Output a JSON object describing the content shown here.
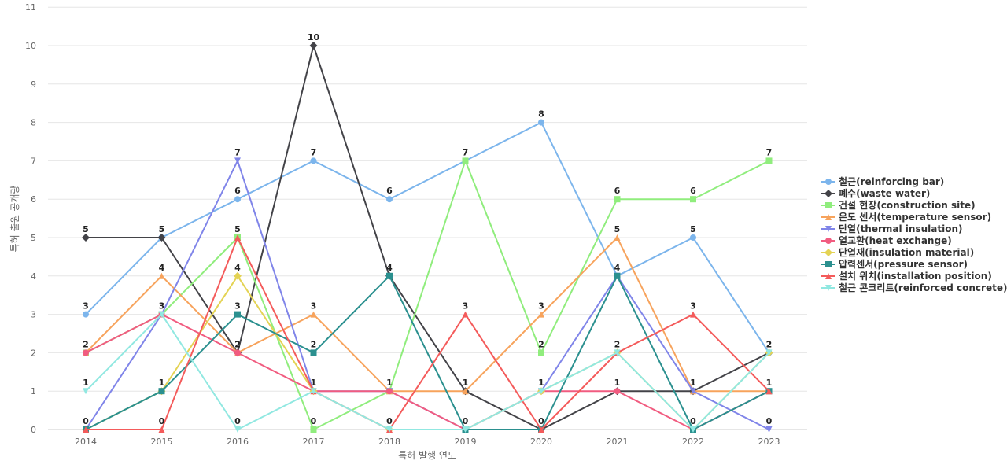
{
  "chart_data": {
    "type": "line",
    "title": "",
    "xlabel": "특허 발행 연도",
    "ylabel": "특허 출원 공개량",
    "ylim": [
      0,
      11
    ],
    "yticks": [
      0,
      1,
      2,
      3,
      4,
      5,
      6,
      7,
      8,
      9,
      10,
      11
    ],
    "grid": true,
    "legend_position": "right",
    "categories": [
      "2014",
      "2015",
      "2016",
      "2017",
      "2018",
      "2019",
      "2020",
      "2021",
      "2022",
      "2023"
    ],
    "series": [
      {
        "name": "철근(reinforcing bar)",
        "color": "#7cb5ec",
        "marker": "circle",
        "values": [
          3,
          5,
          6,
          7,
          6,
          7,
          8,
          4,
          5,
          2
        ]
      },
      {
        "name": "폐수(waste water)",
        "color": "#434348",
        "marker": "diamond",
        "values": [
          5,
          5,
          2,
          10,
          4,
          1,
          0,
          1,
          1,
          2
        ]
      },
      {
        "name": "건설 현장(construction site)",
        "color": "#90ed7d",
        "marker": "square",
        "values": [
          2,
          3,
          5,
          0,
          1,
          7,
          2,
          6,
          6,
          7
        ]
      },
      {
        "name": "온도 센서(temperature sensor)",
        "color": "#f7a35c",
        "marker": "triangle",
        "values": [
          2,
          4,
          2,
          3,
          1,
          1,
          3,
          5,
          1,
          1
        ]
      },
      {
        "name": "단열(thermal insulation)",
        "color": "#8085e9",
        "marker": "triangle-down",
        "values": [
          0,
          3,
          7,
          1,
          1,
          0,
          1,
          4,
          1,
          0
        ]
      },
      {
        "name": "열교환(heat exchange)",
        "color": "#f15c80",
        "marker": "circle",
        "values": [
          2,
          3,
          2,
          1,
          1,
          0,
          1,
          1,
          0,
          1
        ]
      },
      {
        "name": "단열재(insulation material)",
        "color": "#e4d354",
        "marker": "diamond",
        "values": [
          0,
          1,
          4,
          1,
          0,
          0,
          1,
          2,
          0,
          2
        ]
      },
      {
        "name": "압력센서(pressure sensor)",
        "color": "#2b908f",
        "marker": "square",
        "values": [
          0,
          1,
          3,
          2,
          4,
          0,
          0,
          4,
          0,
          1
        ]
      },
      {
        "name": "설치 위치(installation position)",
        "color": "#f45b5b",
        "marker": "triangle",
        "values": [
          0,
          0,
          5,
          1,
          0,
          3,
          0,
          2,
          3,
          1
        ]
      },
      {
        "name": "철근 콘크리트(reinforced concrete)",
        "color": "#91e8e1",
        "marker": "triangle-down",
        "values": [
          1,
          3,
          0,
          1,
          0,
          0,
          1,
          2,
          0,
          2
        ]
      }
    ],
    "data_labels": [
      {
        "category": "2014",
        "value": 5,
        "text": "5"
      },
      {
        "category": "2014",
        "value": 3,
        "text": "3"
      },
      {
        "category": "2014",
        "value": 2,
        "text": "2"
      },
      {
        "category": "2014",
        "value": 1,
        "text": "1"
      },
      {
        "category": "2014",
        "value": 0,
        "text": "0"
      },
      {
        "category": "2015",
        "value": 5,
        "text": "5"
      },
      {
        "category": "2015",
        "value": 4,
        "text": "4"
      },
      {
        "category": "2015",
        "value": 3,
        "text": "3"
      },
      {
        "category": "2015",
        "value": 1,
        "text": "1"
      },
      {
        "category": "2015",
        "value": 0,
        "text": "0"
      },
      {
        "category": "2016",
        "value": 7,
        "text": "7"
      },
      {
        "category": "2016",
        "value": 6,
        "text": "6"
      },
      {
        "category": "2016",
        "value": 5,
        "text": "5"
      },
      {
        "category": "2016",
        "value": 4,
        "text": "4"
      },
      {
        "category": "2016",
        "value": 3,
        "text": "3"
      },
      {
        "category": "2016",
        "value": 2,
        "text": "2"
      },
      {
        "category": "2016",
        "value": 0,
        "text": "0"
      },
      {
        "category": "2017",
        "value": 10,
        "text": "10"
      },
      {
        "category": "2017",
        "value": 7,
        "text": "7"
      },
      {
        "category": "2017",
        "value": 3,
        "text": "3"
      },
      {
        "category": "2017",
        "value": 2,
        "text": "2"
      },
      {
        "category": "2017",
        "value": 1,
        "text": "1"
      },
      {
        "category": "2017",
        "value": 0,
        "text": "0"
      },
      {
        "category": "2018",
        "value": 6,
        "text": "6"
      },
      {
        "category": "2018",
        "value": 4,
        "text": "4"
      },
      {
        "category": "2018",
        "value": 1,
        "text": "1"
      },
      {
        "category": "2018",
        "value": 0,
        "text": "0"
      },
      {
        "category": "2019",
        "value": 7,
        "text": "7"
      },
      {
        "category": "2019",
        "value": 3,
        "text": "3"
      },
      {
        "category": "2019",
        "value": 1,
        "text": "1"
      },
      {
        "category": "2019",
        "value": 0,
        "text": "0"
      },
      {
        "category": "2020",
        "value": 8,
        "text": "8"
      },
      {
        "category": "2020",
        "value": 3,
        "text": "3"
      },
      {
        "category": "2020",
        "value": 2,
        "text": "2"
      },
      {
        "category": "2020",
        "value": 1,
        "text": "1"
      },
      {
        "category": "2020",
        "value": 0,
        "text": "0"
      },
      {
        "category": "2021",
        "value": 6,
        "text": "6"
      },
      {
        "category": "2021",
        "value": 5,
        "text": "5"
      },
      {
        "category": "2021",
        "value": 4,
        "text": "4"
      },
      {
        "category": "2021",
        "value": 2,
        "text": "2"
      },
      {
        "category": "2021",
        "value": 1,
        "text": "1"
      },
      {
        "category": "2022",
        "value": 6,
        "text": "6"
      },
      {
        "category": "2022",
        "value": 5,
        "text": "5"
      },
      {
        "category": "2022",
        "value": 3,
        "text": "3"
      },
      {
        "category": "2022",
        "value": 1,
        "text": "1"
      },
      {
        "category": "2022",
        "value": 0,
        "text": "0"
      },
      {
        "category": "2023",
        "value": 7,
        "text": "7"
      },
      {
        "category": "2023",
        "value": 2,
        "text": "2"
      },
      {
        "category": "2023",
        "value": 1,
        "text": "1"
      },
      {
        "category": "2023",
        "value": 0,
        "text": "0"
      }
    ]
  }
}
